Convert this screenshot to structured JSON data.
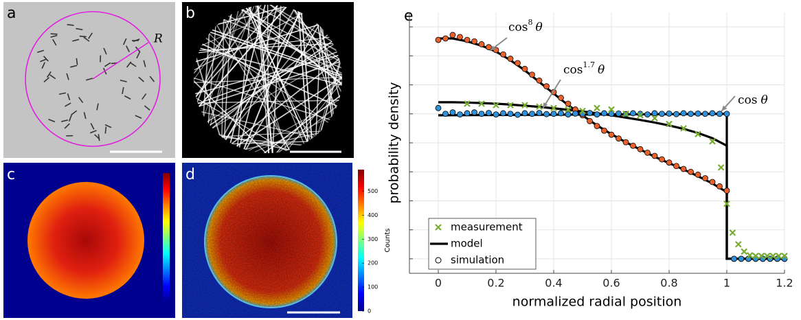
{
  "panels": {
    "a": {
      "label": "a",
      "radius_label": "R"
    },
    "b": {
      "label": "b"
    },
    "c": {
      "label": "c"
    },
    "d": {
      "label": "d",
      "colorbar": {
        "title": "Counts",
        "clim": [
          0,
          590
        ],
        "ticks": [
          0,
          100,
          200,
          300,
          400,
          500
        ]
      }
    }
  },
  "chart_data": {
    "type": "line",
    "panel_label": "e",
    "xlabel": "normalized radial position",
    "ylabel": "probability density",
    "xlim": [
      -0.1,
      1.2
    ],
    "xticks": [
      0,
      0.2,
      0.4,
      0.6,
      0.8,
      1,
      1.2
    ],
    "ylim": [
      -0.5,
      8.5
    ],
    "yticks": [
      0,
      1,
      2,
      3,
      4,
      5,
      6,
      7,
      8
    ],
    "grid": true,
    "legend": "lower left",
    "series": [
      {
        "name": "measurement",
        "color": "#77ac30",
        "marker": "x",
        "x": [
          0.1,
          0.15,
          0.2,
          0.25,
          0.3,
          0.35,
          0.4,
          0.45,
          0.5,
          0.55,
          0.6,
          0.65,
          0.7,
          0.75,
          0.8,
          0.85,
          0.9,
          0.95,
          0.98,
          1,
          1.02,
          1.04,
          1.06,
          1.08,
          1.1,
          1.12,
          1.14,
          1.16,
          1.18,
          1.2
        ],
        "values": [
          5.35,
          5.35,
          5.3,
          5.3,
          5.3,
          5.25,
          5.2,
          5.15,
          5.1,
          5.2,
          5.15,
          5.0,
          4.95,
          4.85,
          4.65,
          4.5,
          4.3,
          4.05,
          3.15,
          1.9,
          0.9,
          0.5,
          0.25,
          0.12,
          0.1,
          0.1,
          0.1,
          0.1,
          0.1,
          0.1
        ]
      },
      {
        "name": "model",
        "color": "#000000",
        "marker": "line",
        "lines": [
          {
            "x": [
              0,
              0.05,
              0.1,
              0.15,
              0.2,
              0.25,
              0.3,
              0.35,
              0.4,
              0.45,
              0.5,
              0.55,
              0.6,
              0.65,
              0.7,
              0.75,
              0.8,
              0.85,
              0.9,
              0.95,
              1,
              1,
              1.2
            ],
            "values": [
              7.6,
              7.6,
              7.5,
              7.35,
              7.15,
              6.85,
              6.5,
              6.1,
              5.7,
              5.3,
              4.95,
              4.6,
              4.3,
              4.02,
              3.77,
              3.52,
              3.3,
              3.08,
              2.85,
              2.6,
              2.3,
              0,
              0
            ]
          },
          {
            "x": [
              0,
              0.05,
              0.1,
              0.15,
              0.2,
              0.25,
              0.3,
              0.35,
              0.4,
              0.45,
              0.5,
              0.55,
              0.6,
              0.65,
              0.7,
              0.75,
              0.8,
              0.85,
              0.9,
              0.95,
              1,
              1,
              1.2
            ],
            "values": [
              5.4,
              5.4,
              5.39,
              5.37,
              5.35,
              5.32,
              5.28,
              5.24,
              5.19,
              5.14,
              5.08,
              5.02,
              4.95,
              4.87,
              4.79,
              4.7,
              4.6,
              4.48,
              4.34,
              4.16,
              3.9,
              0,
              0
            ]
          },
          {
            "x": [
              0,
              1,
              1,
              1.2
            ],
            "values": [
              4.95,
              5.0,
              0,
              0
            ]
          }
        ]
      },
      {
        "name": "simulation",
        "color": "#000000",
        "marker": "o",
        "sets": [
          {
            "color": "#e8602c",
            "x": [
              0,
              0.025,
              0.05,
              0.075,
              0.1,
              0.125,
              0.15,
              0.175,
              0.2,
              0.225,
              0.25,
              0.275,
              0.3,
              0.325,
              0.35,
              0.375,
              0.4,
              0.425,
              0.45,
              0.475,
              0.5,
              0.525,
              0.55,
              0.575,
              0.6,
              0.625,
              0.65,
              0.675,
              0.7,
              0.725,
              0.75,
              0.775,
              0.8,
              0.825,
              0.85,
              0.875,
              0.9,
              0.925,
              0.95,
              0.975,
              1,
              1.025,
              1.05,
              1.075,
              1.1,
              1.125,
              1.15,
              1.175,
              1.2
            ],
            "values": [
              7.55,
              7.6,
              7.72,
              7.65,
              7.55,
              7.5,
              7.4,
              7.3,
              7.2,
              7.05,
              6.9,
              6.75,
              6.55,
              6.35,
              6.15,
              5.95,
              5.75,
              5.55,
              5.35,
              5.15,
              4.95,
              4.75,
              4.58,
              4.42,
              4.28,
              4.15,
              4.02,
              3.9,
              3.78,
              3.66,
              3.55,
              3.43,
              3.32,
              3.2,
              3.1,
              3.0,
              2.9,
              2.78,
              2.65,
              2.5,
              2.35,
              0,
              0,
              0,
              0,
              0,
              0,
              0,
              0
            ]
          },
          {
            "color": "#2f8fd8",
            "x": [
              0,
              0.025,
              0.05,
              0.075,
              0.1,
              0.125,
              0.15,
              0.175,
              0.2,
              0.225,
              0.25,
              0.275,
              0.3,
              0.325,
              0.35,
              0.375,
              0.4,
              0.425,
              0.45,
              0.475,
              0.5,
              0.525,
              0.55,
              0.575,
              0.6,
              0.625,
              0.65,
              0.675,
              0.7,
              0.725,
              0.75,
              0.775,
              0.8,
              0.825,
              0.85,
              0.875,
              0.9,
              0.925,
              0.95,
              0.975,
              1,
              1.025,
              1.05,
              1.075,
              1.1,
              1.125,
              1.15,
              1.175,
              1.2
            ],
            "values": [
              5.2,
              5.0,
              5.05,
              4.98,
              5.02,
              5.05,
              5.0,
              5.03,
              4.98,
              5.02,
              5.0,
              4.97,
              5.02,
              5.0,
              5.03,
              4.99,
              5.0,
              5.02,
              4.98,
              5.01,
              5.0,
              5.03,
              4.98,
              5.02,
              5.0,
              5.01,
              4.99,
              5.02,
              5.0,
              4.98,
              5.02,
              5.0,
              5.01,
              4.99,
              5.02,
              5.0,
              5.01,
              5.0,
              5.02,
              5.0,
              5.0,
              0,
              0,
              0,
              0,
              0,
              0,
              0,
              0
            ]
          }
        ]
      }
    ],
    "annotations": [
      {
        "text": "cos",
        "exponent": "8",
        "symbol": "θ"
      },
      {
        "text": "cos",
        "exponent": "1.7",
        "symbol": "θ"
      },
      {
        "text": "cos",
        "symbol": "θ"
      }
    ]
  }
}
